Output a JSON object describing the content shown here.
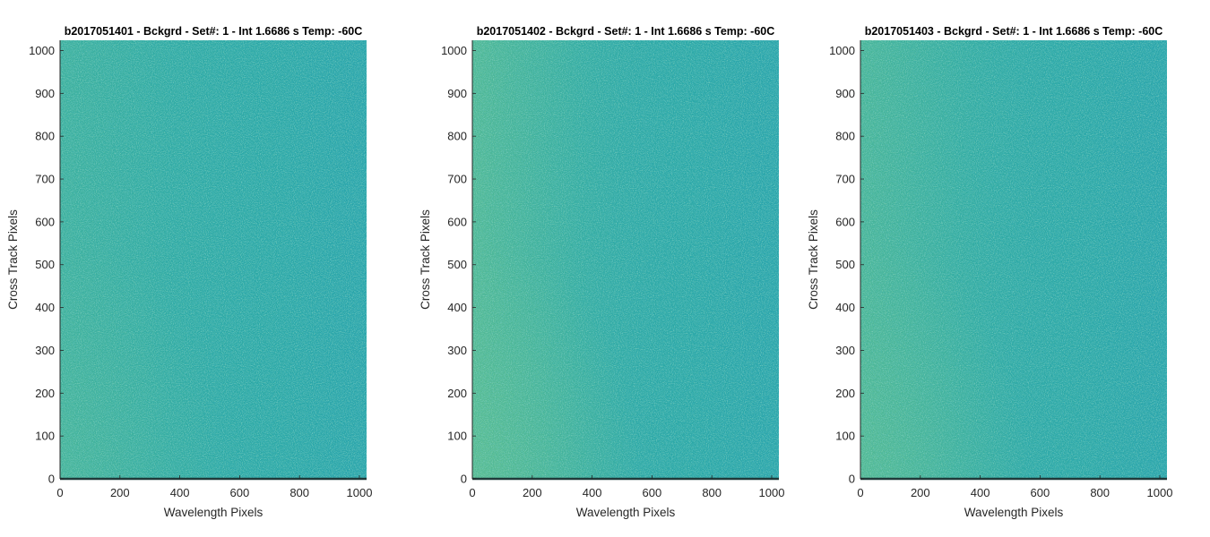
{
  "figure": {
    "background": "#ffffff"
  },
  "chart_data": [
    {
      "type": "heatmap",
      "title": "b2017051401 - Bckgrd - Set#: 1 - Int 1.6686 s Temp: -60C",
      "xlabel": "Wavelength Pixels",
      "ylabel": "Cross Track Pixels",
      "xlim": [
        0,
        1024
      ],
      "ylim": [
        0,
        1024
      ],
      "xticks": [
        0,
        200,
        400,
        600,
        800,
        1000
      ],
      "yticks": [
        0,
        100,
        200,
        300,
        400,
        500,
        600,
        700,
        800,
        900,
        1000
      ],
      "colormap": "parula",
      "colors": {
        "base": "#2aa8a4",
        "warm": "#5bbd8d",
        "cool": "#1f96b8",
        "baseline": "#1f3a3a"
      },
      "pattern": "uniform background noise, slightly warmer toward left edge and bottom-left corner, cooler toward right",
      "edge_gradient": 0.35
    },
    {
      "type": "heatmap",
      "title": "b2017051402 - Bckgrd - Set#: 1 - Int 1.6686 s Temp: -60C",
      "xlabel": "Wavelength Pixels",
      "ylabel": "Cross Track Pixels",
      "xlim": [
        0,
        1024
      ],
      "ylim": [
        0,
        1024
      ],
      "xticks": [
        0,
        200,
        400,
        600,
        800,
        1000
      ],
      "yticks": [
        0,
        100,
        200,
        300,
        400,
        500,
        600,
        700,
        800,
        900,
        1000
      ],
      "colormap": "parula",
      "colors": {
        "base": "#2aa8a4",
        "warm": "#5bbd8d",
        "cool": "#1f96b8",
        "baseline": "#1f3a3a"
      },
      "pattern": "uniform background noise, noticeably warmer toward left edge and bottom-left corner, cooler toward right",
      "edge_gradient": 0.75
    },
    {
      "type": "heatmap",
      "title": "b2017051403 - Bckgrd - Set#: 1 - Int 1.6686 s Temp: -60C",
      "xlabel": "Wavelength Pixels",
      "ylabel": "Cross Track Pixels",
      "xlim": [
        0,
        1024
      ],
      "ylim": [
        0,
        1024
      ],
      "xticks": [
        0,
        200,
        400,
        600,
        800,
        1000
      ],
      "yticks": [
        0,
        100,
        200,
        300,
        400,
        500,
        600,
        700,
        800,
        900,
        1000
      ],
      "colormap": "parula",
      "colors": {
        "base": "#2aa8a4",
        "warm": "#5bbd8d",
        "cool": "#1f96b8",
        "baseline": "#1f3a3a"
      },
      "pattern": "uniform background noise, warmer toward left edge and bottom-left corner, cooler toward right",
      "edge_gradient": 0.6
    }
  ]
}
